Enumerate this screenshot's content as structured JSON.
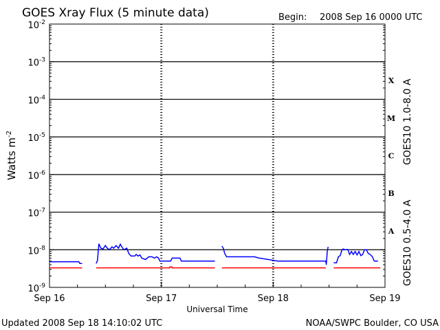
{
  "header": {
    "title": "GOES Xray Flux (5 minute data)",
    "begin_label": "Begin:",
    "begin_value": "2008 Sep 16 0000 UTC"
  },
  "footer": {
    "updated": "Updated 2008 Sep 18 14:10:02 UTC",
    "source": "NOAA/SWPC Boulder, CO USA"
  },
  "colors": {
    "long_channel": "#ff0000",
    "short_channel": "#0000ff",
    "grid": "#000000"
  },
  "chart_data": {
    "type": "line",
    "title": "GOES Xray Flux (5 minute data)",
    "xlabel": "Universal Time",
    "ylabel": "Watts m",
    "ylabel_sup": "-2",
    "yscale": "log",
    "ylim": [
      1e-09,
      0.01
    ],
    "xlim": [
      0,
      72
    ],
    "x_unit": "hours since 2008 Sep 16 0000 UTC",
    "yticks": [
      {
        "value": 1e-09,
        "base": "10",
        "exp": "-9"
      },
      {
        "value": 1e-08,
        "base": "10",
        "exp": "-8"
      },
      {
        "value": 1e-07,
        "base": "10",
        "exp": "-7"
      },
      {
        "value": 1e-06,
        "base": "10",
        "exp": "-6"
      },
      {
        "value": 1e-05,
        "base": "10",
        "exp": "-5"
      },
      {
        "value": 0.0001,
        "base": "10",
        "exp": "-4"
      },
      {
        "value": 0.001,
        "base": "10",
        "exp": "-3"
      },
      {
        "value": 0.01,
        "base": "10",
        "exp": "-2"
      }
    ],
    "xticks": [
      {
        "value": 0,
        "label": "Sep 16"
      },
      {
        "value": 24,
        "label": "Sep 17"
      },
      {
        "value": 48,
        "label": "Sep 18"
      },
      {
        "value": 72,
        "label": "Sep 19"
      }
    ],
    "flare_classes": [
      {
        "label": "A",
        "value": 3.16e-08
      },
      {
        "label": "B",
        "value": 3.16e-07
      },
      {
        "label": "C",
        "value": 3.16e-06
      },
      {
        "label": "M",
        "value": 3.16e-05
      },
      {
        "label": "X",
        "value": 0.000316
      }
    ],
    "gridlines_y": [
      1e-08,
      1e-07,
      1e-06,
      1e-05,
      0.0001,
      0.001
    ],
    "series": [
      {
        "name": "GOES10 1.0-8.0 A",
        "color": "#ff0000",
        "segments": [
          [
            [
              0,
              3.3e-09
            ],
            [
              7.0,
              3.3e-09
            ]
          ],
          [
            [
              10.0,
              3.3e-09
            ],
            [
              25.8,
              3.3e-09
            ],
            [
              25.8,
              3.5e-09
            ],
            [
              26.3,
              3.5e-09
            ],
            [
              26.3,
              3.3e-09
            ],
            [
              35.5,
              3.3e-09
            ]
          ],
          [
            [
              37.0,
              3.3e-09
            ],
            [
              59.3,
              3.3e-09
            ]
          ],
          [
            [
              61.0,
              3.3e-09
            ],
            [
              71.0,
              3.3e-09
            ]
          ]
        ]
      },
      {
        "name": "GOES10 0.5-4.0 A",
        "color": "#0000ff",
        "segments": [
          [
            [
              0,
              4.8e-09
            ],
            [
              6.3,
              4.8e-09
            ],
            [
              6.5,
              4.3e-09
            ],
            [
              7.0,
              4.3e-09
            ]
          ],
          [
            [
              10.0,
              4.3e-09
            ],
            [
              10.3,
              5.2e-09
            ],
            [
              10.6,
              1.45e-08
            ],
            [
              11.0,
              1.1e-08
            ],
            [
              11.5,
              1.05e-08
            ],
            [
              12.0,
              1.3e-08
            ],
            [
              12.4,
              1.1e-08
            ],
            [
              12.9,
              1e-08
            ],
            [
              13.4,
              1.2e-08
            ],
            [
              13.8,
              1.1e-08
            ],
            [
              14.3,
              1.3e-08
            ],
            [
              14.8,
              1.1e-08
            ],
            [
              15.2,
              1.4e-08
            ],
            [
              15.6,
              1.15e-08
            ],
            [
              16.0,
              1e-08
            ],
            [
              16.6,
              1.1e-08
            ],
            [
              17.0,
              8e-09
            ],
            [
              17.5,
              6.8e-09
            ],
            [
              18.3,
              6.8e-09
            ],
            [
              18.6,
              7.5e-09
            ],
            [
              19.0,
              6.8e-09
            ],
            [
              19.4,
              7.3e-09
            ],
            [
              19.8,
              6e-09
            ],
            [
              20.6,
              5.5e-09
            ],
            [
              21.3,
              6.5e-09
            ],
            [
              22.0,
              6.5e-09
            ],
            [
              22.5,
              6e-09
            ],
            [
              23.0,
              6.5e-09
            ],
            [
              23.4,
              6e-09
            ],
            [
              23.7,
              5e-09
            ],
            [
              26.0,
              5e-09
            ],
            [
              26.3,
              6e-09
            ],
            [
              28.0,
              6e-09
            ],
            [
              28.3,
              5e-09
            ],
            [
              35.5,
              5e-09
            ]
          ],
          [
            [
              37.0,
              1.25e-08
            ],
            [
              37.3,
              1.1e-08
            ],
            [
              37.6,
              8e-09
            ],
            [
              38.0,
              6.5e-09
            ],
            [
              44.0,
              6.5e-09
            ],
            [
              45.0,
              6e-09
            ],
            [
              47.0,
              5.5e-09
            ],
            [
              49.0,
              5e-09
            ],
            [
              59.3,
              5e-09
            ],
            [
              59.4,
              4e-09
            ],
            [
              59.6,
              9e-09
            ],
            [
              59.8,
              1.2e-08
            ]
          ],
          [
            [
              61.0,
              4.5e-09
            ],
            [
              61.6,
              4.5e-09
            ],
            [
              62.0,
              6.5e-09
            ],
            [
              62.4,
              7e-09
            ],
            [
              62.7,
              9.5e-09
            ],
            [
              63.0,
              1.05e-08
            ],
            [
              63.5,
              1e-08
            ],
            [
              64.0,
              1.02e-08
            ],
            [
              64.4,
              7.5e-09
            ],
            [
              64.8,
              9e-09
            ],
            [
              65.2,
              7.5e-09
            ],
            [
              65.6,
              9e-09
            ],
            [
              66.0,
              7.3e-09
            ],
            [
              66.4,
              9e-09
            ],
            [
              66.8,
              7e-09
            ],
            [
              67.2,
              7.5e-09
            ],
            [
              67.6,
              1e-08
            ],
            [
              68.0,
              1e-08
            ],
            [
              68.4,
              8e-09
            ],
            [
              68.8,
              7.5e-09
            ],
            [
              69.3,
              6.5e-09
            ],
            [
              69.7,
              5e-09
            ],
            [
              70.5,
              5e-09
            ]
          ]
        ]
      }
    ],
    "right_labels": [
      {
        "text": "GOES10 1.0-8.0 A",
        "color": "#ff0000"
      },
      {
        "text": "GOES10 0.5-4.0 A",
        "color": "#0000ff"
      }
    ]
  }
}
